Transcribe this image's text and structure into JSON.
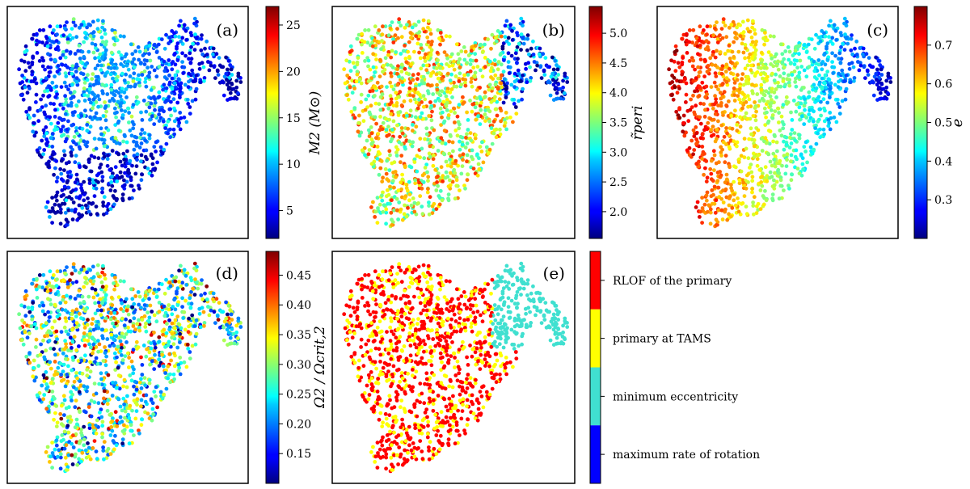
{
  "chart_data": {
    "type": "scatter",
    "title": "",
    "panels": [
      {
        "label": "(a)",
        "colorbar_label": "M2 (M⊙)",
        "colorbar_ticks": [
          5,
          10,
          15,
          20,
          25
        ],
        "colorbar_range": [
          2,
          27
        ],
        "colormap": "jet",
        "pattern": "mass"
      },
      {
        "label": "(b)",
        "colorbar_label": "r̃peri",
        "colorbar_ticks": [
          2.0,
          2.5,
          3.0,
          3.5,
          4.0,
          4.5,
          5.0
        ],
        "colorbar_tick_labels": [
          "2.0",
          "2.5",
          "3.0",
          "3.5",
          "4.0",
          "4.5",
          "5.0"
        ],
        "colorbar_range": [
          1.55,
          5.45
        ],
        "colormap": "jet",
        "pattern": "rperi"
      },
      {
        "label": "(c)",
        "colorbar_label": "e",
        "colorbar_ticks": [
          0.3,
          0.4,
          0.5,
          0.6,
          0.7
        ],
        "colorbar_range": [
          0.2,
          0.8
        ],
        "colormap": "jet",
        "pattern": "ecc"
      },
      {
        "label": "(d)",
        "colorbar_label": "Ω2 / Ωcrit,2",
        "colorbar_ticks": [
          0.15,
          0.2,
          0.25,
          0.3,
          0.35,
          0.4,
          0.45
        ],
        "colorbar_tick_labels": [
          "0.15",
          "0.20",
          "0.25",
          "0.30",
          "0.35",
          "0.40",
          "0.45"
        ],
        "colorbar_range": [
          0.1,
          0.49
        ],
        "colormap": "jet",
        "pattern": "omega"
      },
      {
        "label": "(e)",
        "colormap": "categorical",
        "pattern": "category",
        "categories": [
          {
            "name": "RLOF of the primary",
            "color": "#ff0000"
          },
          {
            "name": "primary at TAMS",
            "color": "#ffff00"
          },
          {
            "name": "minimum eccentricity",
            "color": "#40e0d0"
          },
          {
            "name": "maximum rate of rotation",
            "color": "#0000ff"
          }
        ]
      }
    ]
  }
}
